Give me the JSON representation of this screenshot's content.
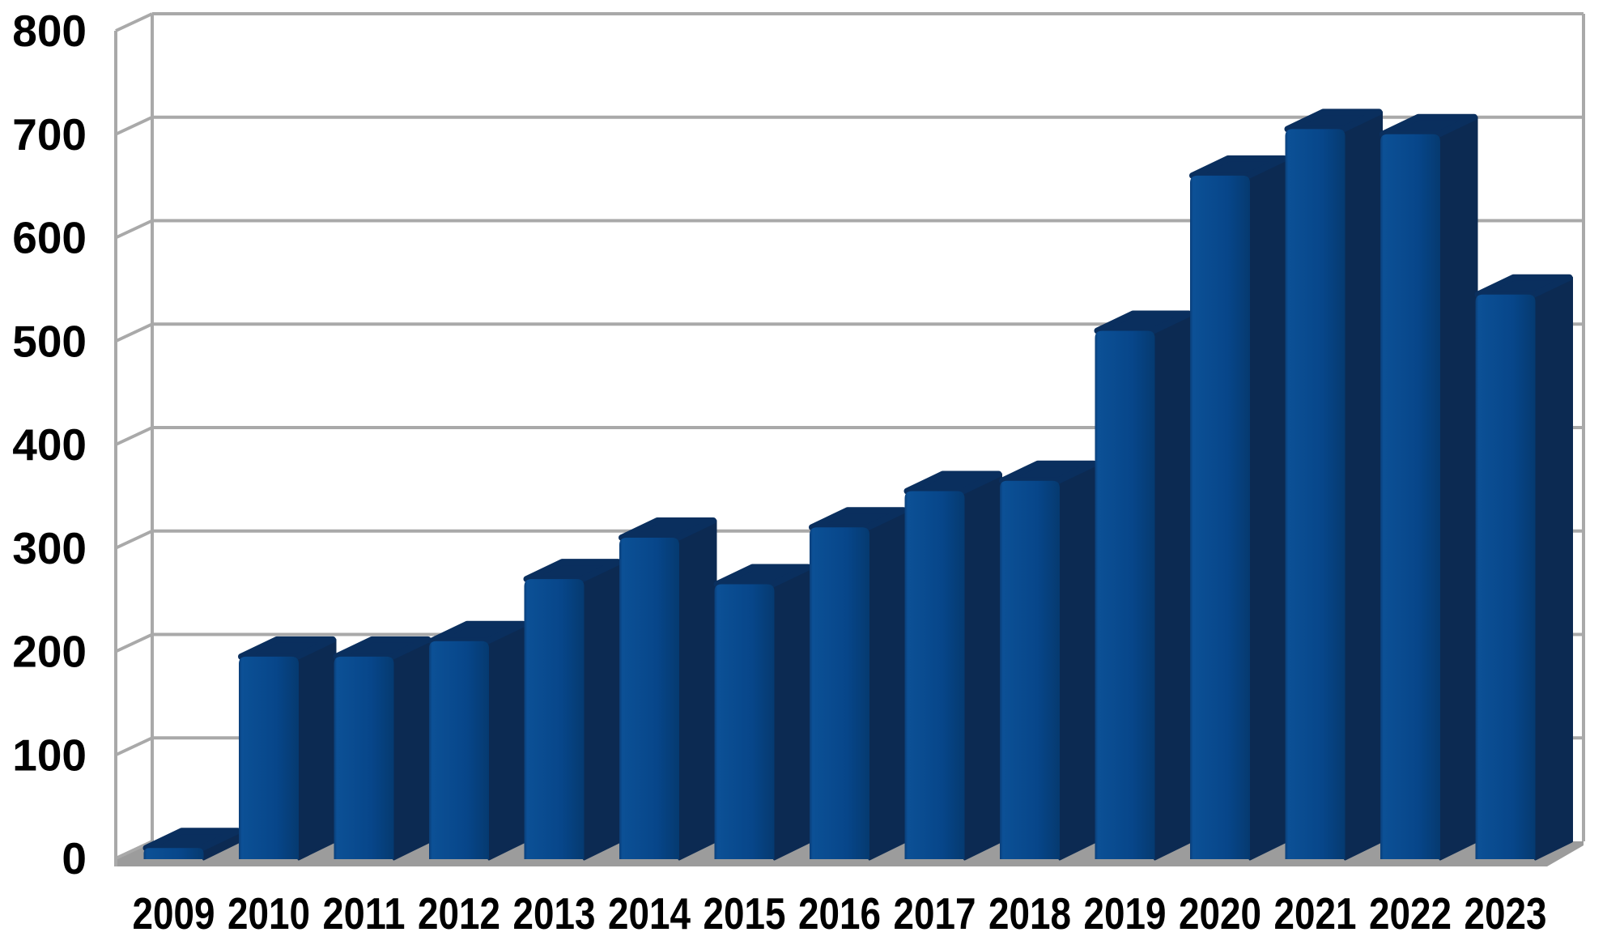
{
  "chart_data": {
    "type": "bar",
    "style": "3d-column",
    "title": "",
    "xlabel": "",
    "ylabel": "",
    "categories": [
      "2009",
      "2010",
      "2011",
      "2012",
      "2013",
      "2014",
      "2015",
      "2016",
      "2017",
      "2018",
      "2019",
      "2020",
      "2021",
      "2022",
      "2023"
    ],
    "values": [
      10,
      195,
      195,
      210,
      270,
      310,
      265,
      320,
      355,
      365,
      510,
      660,
      705,
      700,
      545
    ],
    "yticks": [
      "0",
      "100",
      "200",
      "300",
      "400",
      "500",
      "600",
      "700",
      "800"
    ],
    "ylim": [
      0,
      800
    ],
    "ytick_interval": 100,
    "grid": true,
    "legend": false,
    "colors": {
      "bar_front": "#07488c",
      "bar_front_light": "#0c5096",
      "bar_front_edge": "#0a3e78",
      "bar_front_dark": "#053a70",
      "bar_top": "#0a2f5e",
      "bar_side": "#0c2a52",
      "gridline": "#a9a9a9",
      "floor": "#9c9c9c",
      "wall": "#ffffff",
      "text": "#000000",
      "background": "#ffffff"
    }
  }
}
